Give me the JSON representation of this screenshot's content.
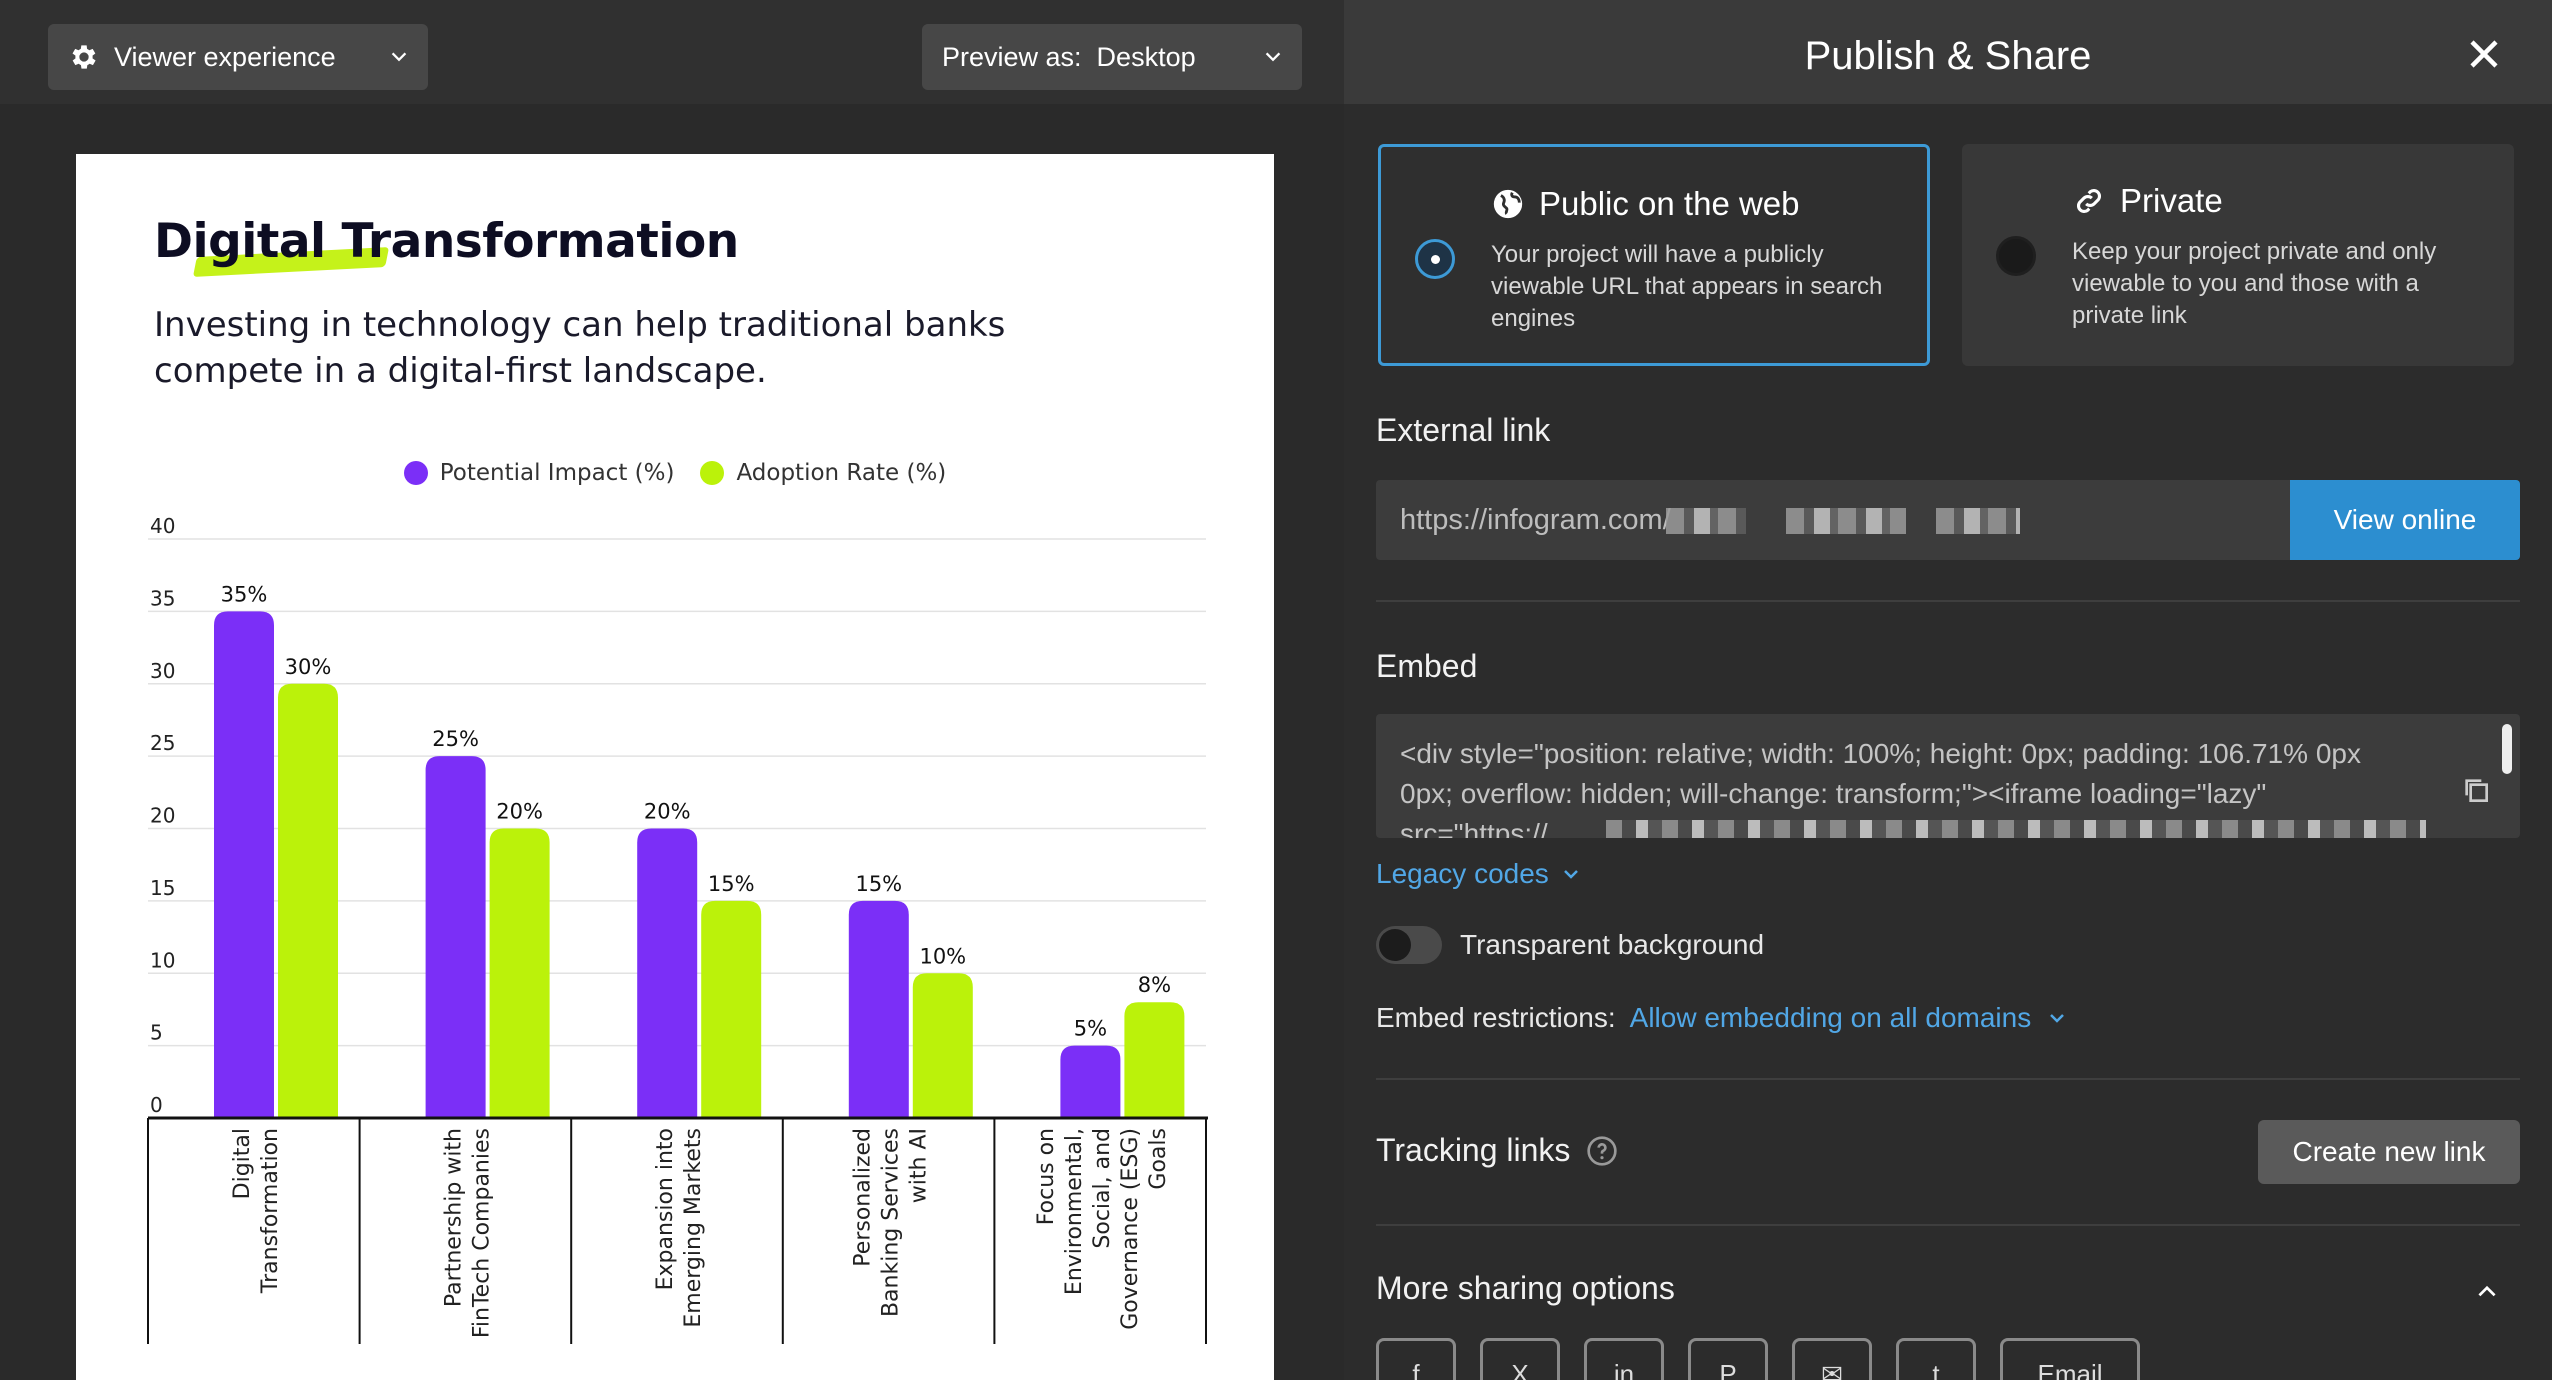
{
  "preview": {
    "viewer_label": "Viewer experience",
    "preview_label": "Preview as:  Desktop"
  },
  "infographic": {
    "title": "Digital Transformation",
    "subtitle": "Investing in technology can help traditional banks compete in a digital-first landscape."
  },
  "chart_data": {
    "type": "bar",
    "categories": [
      "Digital Transformation",
      "Partnership with FinTech Companies",
      "Expansion into Emerging Markets",
      "Personalized Banking Services with AI",
      "Focus on Environmental, Social, and Governance (ESG) Goals"
    ],
    "category_lines": [
      [
        "Digital",
        "Transformation"
      ],
      [
        "Partnership with",
        "FinTech Companies"
      ],
      [
        "Expansion into",
        "Emerging Markets"
      ],
      [
        "Personalized",
        "Banking Services",
        "with AI"
      ],
      [
        "Focus on",
        "Environmental,",
        "Social, and",
        "Governance (ESG)",
        "Goals"
      ]
    ],
    "series": [
      {
        "name": "Potential Impact (%)",
        "values": [
          35,
          25,
          20,
          15,
          5
        ],
        "labels": [
          "35%",
          "25%",
          "20%",
          "15%",
          "5%"
        ],
        "color": "#7b2ff7"
      },
      {
        "name": "Adoption Rate (%)",
        "values": [
          30,
          20,
          15,
          10,
          8
        ],
        "labels": [
          "30%",
          "20%",
          "15%",
          "10%",
          "8%"
        ],
        "color": "#bbf20a"
      }
    ],
    "ylim": [
      0,
      40
    ],
    "yticks": [
      "0",
      "5",
      "10",
      "15",
      "20",
      "25",
      "30",
      "35",
      "40"
    ],
    "grid": true,
    "legend_position": "top-center"
  },
  "panel": {
    "title": "Publish & Share",
    "public": {
      "title": "Public on the web",
      "description": "Your project will have a publicly viewable URL that appears in search engines",
      "selected": true
    },
    "private": {
      "title": "Private",
      "description": "Keep your project private and only viewable to you and those with a private link",
      "selected": false
    },
    "external_link": {
      "heading": "External link",
      "url": "https://infogram.com/",
      "view_button": "View online"
    },
    "embed": {
      "heading": "Embed",
      "code": "<div style=\"position: relative; width: 100%; height: 0px; padding: 106.71% 0px 0px; overflow: hidden; will-change: transform;\"><iframe loading=\"lazy\" src=\"https://",
      "legacy_label": "Legacy codes",
      "transparent_label": "Transparent background",
      "transparent_on": false,
      "restrictions_label": "Embed restrictions:",
      "restrictions_value": "Allow embedding on all domains"
    },
    "tracking": {
      "heading": "Tracking links",
      "create_button": "Create new link"
    },
    "more_sharing": {
      "heading": "More sharing options",
      "buttons": [
        "f",
        "X",
        "in",
        "P",
        "✉",
        "t",
        "Email"
      ]
    }
  }
}
